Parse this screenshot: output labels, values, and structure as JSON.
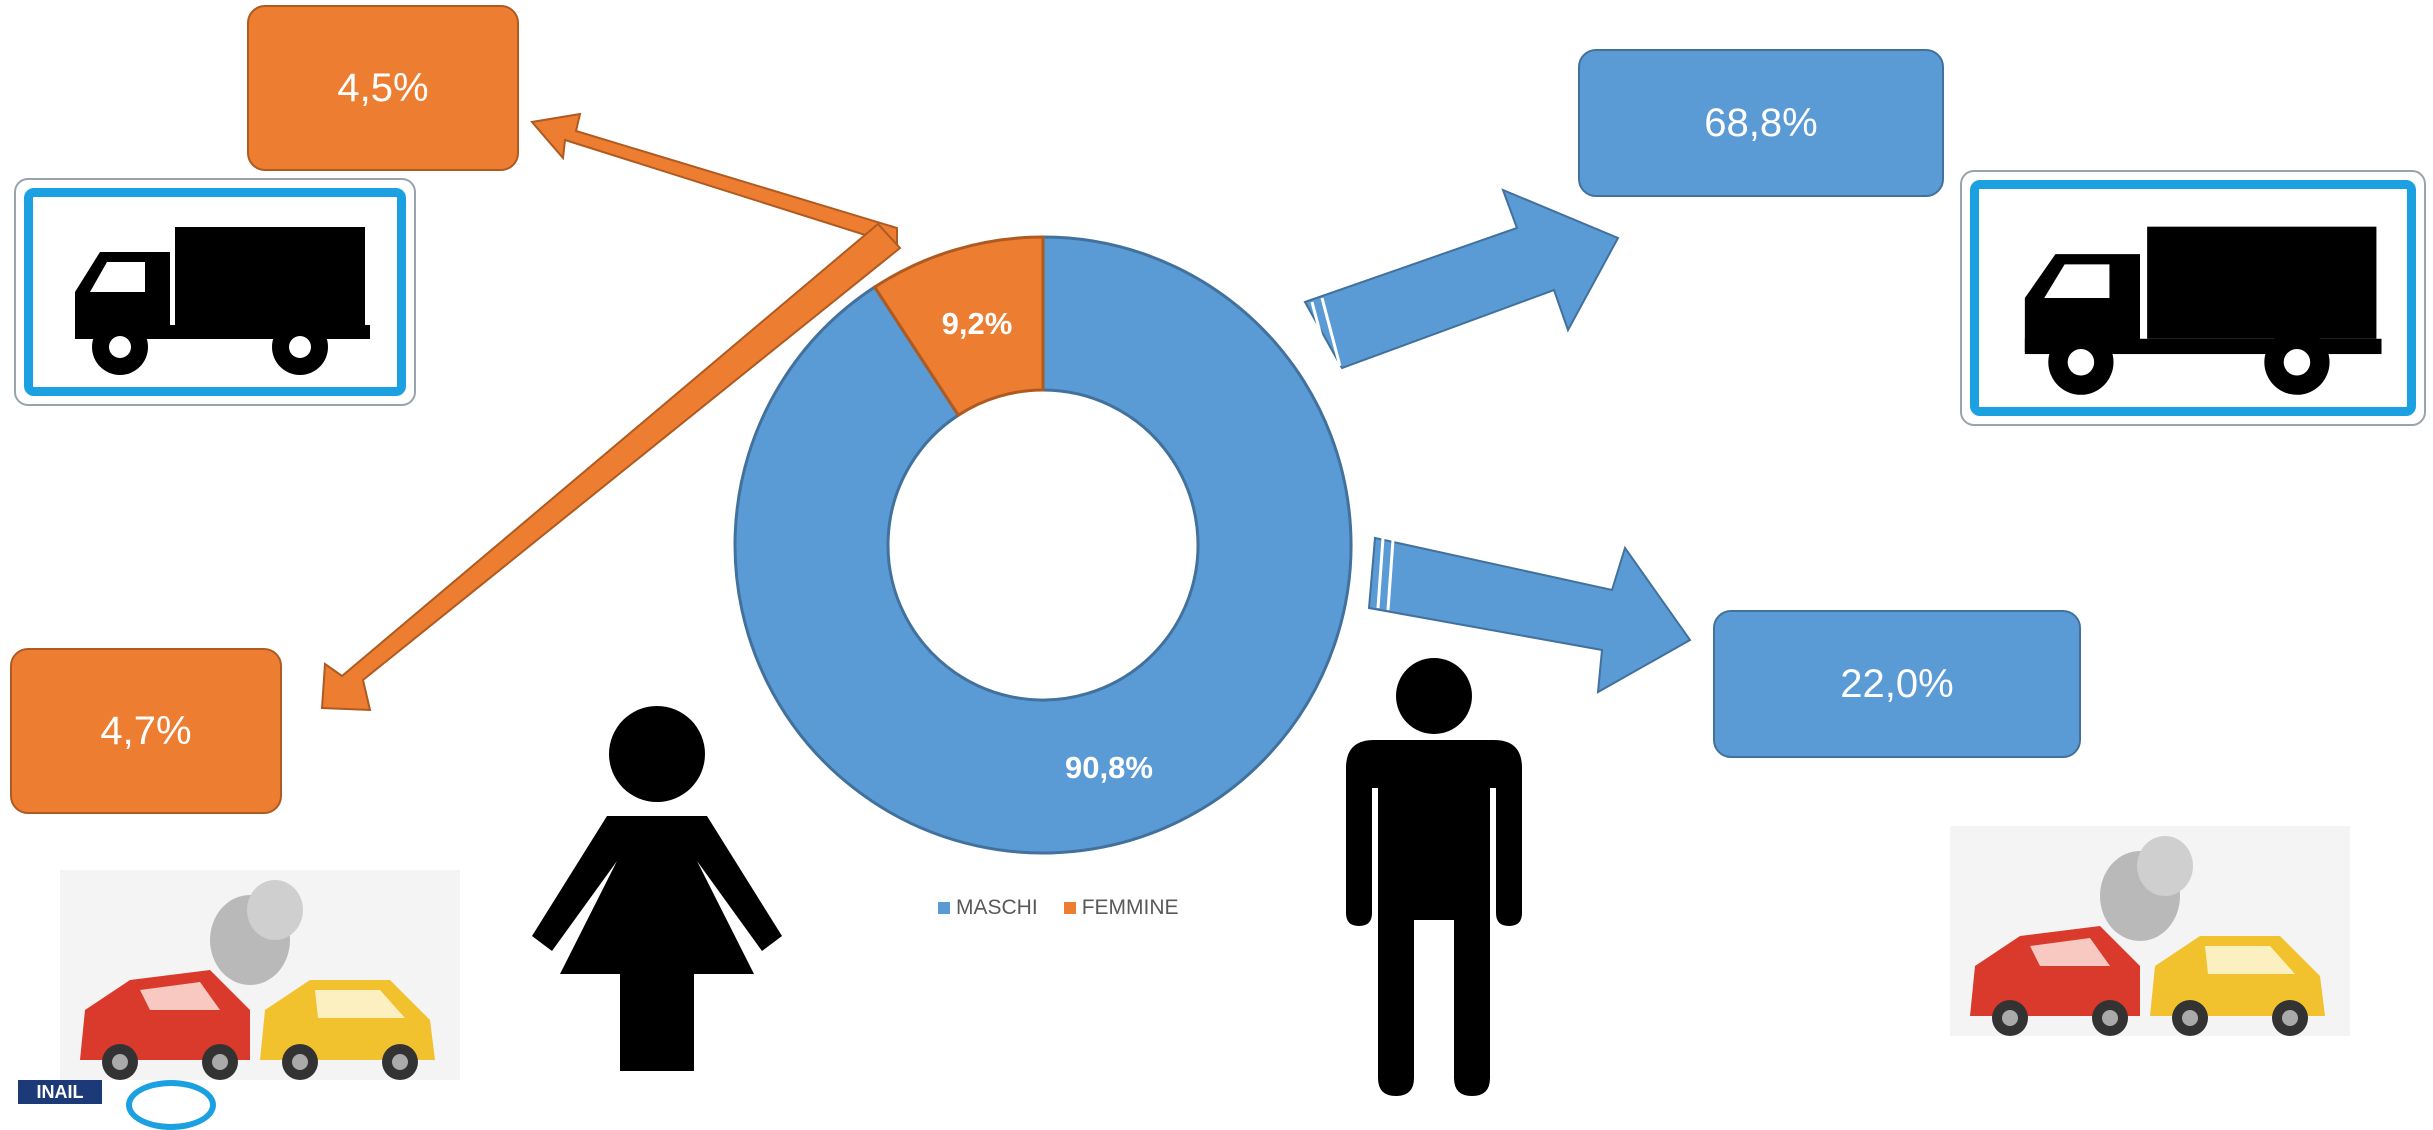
{
  "chart_data": {
    "type": "doughnut",
    "categories": [
      "MASCHI",
      "FEMMINE"
    ],
    "values": [
      90.8,
      9.2
    ],
    "data_labels": [
      "90,8%",
      "9,2%"
    ],
    "colors": [
      "#5B9BD5",
      "#ED7D31"
    ],
    "legend_position": "bottom"
  },
  "callouts": {
    "femmine_top": "4,5%",
    "femmine_bottom": "4,7%",
    "maschi_top": "68,8%",
    "maschi_bottom": "22,0%"
  },
  "logo": {
    "text": "INAIL"
  },
  "icons": {
    "truck": "truck-icon",
    "car_crash": "car-crash-icon",
    "woman": "woman-icon",
    "man": "man-icon"
  }
}
